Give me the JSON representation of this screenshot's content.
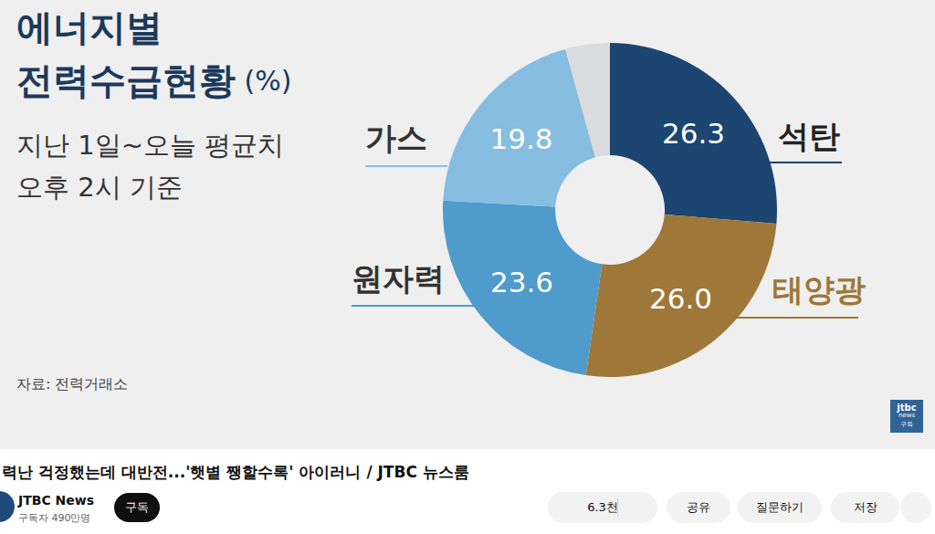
{
  "chart_data": {
    "type": "donut",
    "title": [
      "에너지별",
      "전력수급현황 (%)"
    ],
    "subtitle": [
      "지난 1일~오늘 평균치",
      "오후 2시 기준"
    ],
    "annotations": [
      "자료: 전력거래소"
    ],
    "categories": [
      "석탄",
      "태양광",
      "원자력",
      "가스",
      null
    ],
    "values": [
      26.3,
      26.0,
      23.6,
      19.8,
      4.3
    ],
    "value_labels": [
      "26.3",
      "26.0",
      "23.6",
      "19.8",
      null
    ],
    "colors": [
      "#1c4571",
      "#9e7838",
      "#4f9bcc",
      "#86bde0",
      "#dadbdd"
    ],
    "data_labels": true
  },
  "page": {
    "video_title": "력난 걱정했는데 대반전...'햇볕 쨍할수록' 아이러니 / JTBC 뉴스룸",
    "channel": "JTBC News",
    "subscribers": "구독자 490만명",
    "subscribe_button": "구독",
    "likes": "6.3천",
    "buttons": [
      "공유",
      "질문하기",
      "저장"
    ],
    "watermark": [
      "jtbc",
      "news",
      "구독"
    ]
  }
}
